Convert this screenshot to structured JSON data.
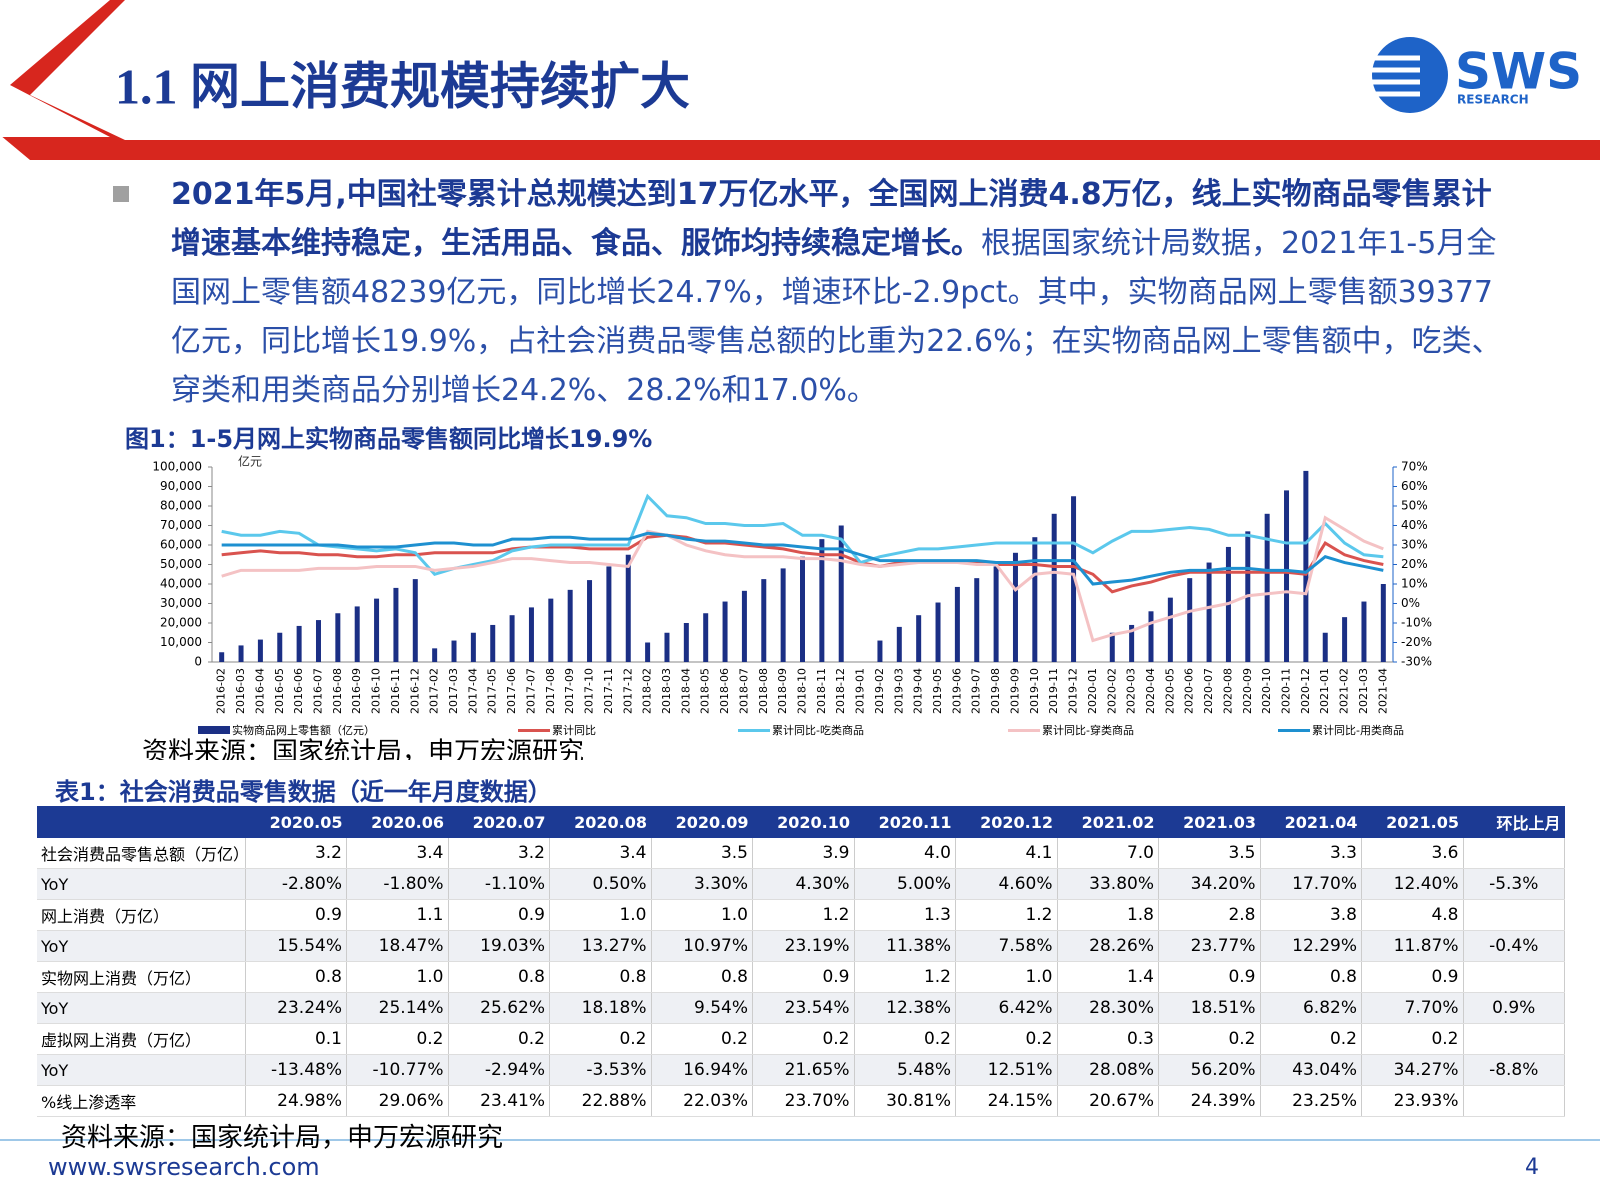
{
  "header": {
    "title": "1.1 网上消费规模持续扩大",
    "logo": "SWS",
    "logo_sub": "RESEARCH"
  },
  "bullet": {
    "bold": "2021年5月,中国社零累计总规模达到17万亿水平，全国网上消费4.8万亿，线上实物商品零售累计增速基本维持稳定，生活用品、食品、服饰均持续稳定增长。",
    "text": "根据国家统计局数据，2021年1-5月全国网上零售额48239亿元，同比增长24.7%，增速环比-2.9pct。其中，实物商品网上零售额39377亿元，同比增长19.9%，占社会消费品零售总额的比重为22.6%；在实物商品网上零售额中，吃类、穿类和用类商品分别增长24.2%、28.2%和17.0%。"
  },
  "chart_data": {
    "type": "combo",
    "title": "图1：1-5月网上实物商品零售额同比增长19.9%",
    "y_unit": "亿元",
    "categories": [
      "2016-02",
      "2016-03",
      "2016-04",
      "2016-05",
      "2016-06",
      "2016-07",
      "2016-08",
      "2016-09",
      "2016-10",
      "2016-11",
      "2016-12",
      "2017-02",
      "2017-03",
      "2017-04",
      "2017-05",
      "2017-06",
      "2017-07",
      "2017-08",
      "2017-09",
      "2017-10",
      "2017-11",
      "2017-12",
      "2018-02",
      "2018-03",
      "2018-04",
      "2018-05",
      "2018-06",
      "2018-07",
      "2018-08",
      "2018-09",
      "2018-10",
      "2018-11",
      "2018-12",
      "2019-01",
      "2019-02",
      "2019-03",
      "2019-04",
      "2019-05",
      "2019-06",
      "2019-07",
      "2019-08",
      "2019-09",
      "2019-10",
      "2019-11",
      "2019-12",
      "2020-01",
      "2020-02",
      "2020-03",
      "2020-04",
      "2020-05",
      "2020-06",
      "2020-07",
      "2020-08",
      "2020-09",
      "2020-10",
      "2020-11",
      "2020-12",
      "2021-01",
      "2021-02",
      "2021-03",
      "2021-04"
    ],
    "ylim": [
      0,
      100000
    ],
    "yticks": [
      0,
      {
        "value": 10000,
        "label": "10,000"
      },
      {
        "value": 20000,
        "label": "20,000"
      },
      {
        "value": 30000,
        "label": "30,000"
      },
      {
        "value": 40000,
        "label": "40,000"
      },
      {
        "value": 50000,
        "label": "50,000"
      },
      {
        "value": 60000,
        "label": "60,000"
      },
      {
        "value": 70000,
        "label": "70,000"
      },
      {
        "value": 80000,
        "label": "80,000"
      },
      {
        "value": 90000,
        "label": "90,000"
      },
      {
        "value": 100000,
        "label": "100,000"
      }
    ],
    "y2lim": [
      -30,
      70
    ],
    "y2ticks": [
      {
        "value": -30,
        "label": "-30%"
      },
      {
        "value": -20,
        "label": "-20%"
      },
      {
        "value": -10,
        "label": "-10%"
      },
      {
        "value": 0,
        "label": "0%"
      },
      {
        "value": 10,
        "label": "10%"
      },
      {
        "value": 20,
        "label": "20%"
      },
      {
        "value": 30,
        "label": "30%"
      },
      {
        "value": 40,
        "label": "40%"
      },
      {
        "value": 50,
        "label": "50%"
      },
      {
        "value": 60,
        "label": "60%"
      },
      {
        "value": 70,
        "label": "70%"
      }
    ],
    "series": [
      {
        "name": "实物商品网上零售额（亿元）",
        "type": "bar",
        "color": "#1b2f85",
        "values": [
          5000,
          8500,
          11500,
          15000,
          18500,
          21500,
          25000,
          28500,
          32500,
          38000,
          42500,
          7000,
          11000,
          15000,
          19000,
          24000,
          28000,
          32500,
          37000,
          42000,
          49000,
          55000,
          10000,
          15000,
          20000,
          25000,
          31000,
          36500,
          42500,
          48000,
          54000,
          63000,
          70000,
          null,
          11000,
          18000,
          24000,
          30500,
          38500,
          43000,
          49000,
          56000,
          64000,
          76000,
          85000,
          null,
          15000,
          19000,
          26000,
          33000,
          43000,
          51000,
          59000,
          67000,
          76000,
          88000,
          98000,
          15000,
          23000,
          31000,
          40000
        ]
      },
      {
        "name": "累计同比",
        "type": "line",
        "axis": "y2",
        "color": "#d9534f",
        "values": [
          25,
          26,
          27,
          26,
          26,
          25,
          25,
          24,
          24,
          25,
          25,
          26,
          26,
          26,
          26,
          28,
          29,
          29,
          29,
          28,
          28,
          28,
          34,
          35,
          34,
          31,
          31,
          30,
          29,
          28,
          26,
          25,
          25,
          21,
          19,
          21,
          21,
          21,
          21,
          21,
          20,
          20,
          20,
          19,
          19,
          15,
          6,
          9,
          11,
          14,
          16,
          16,
          16,
          16,
          16,
          16,
          15,
          31,
          25,
          22,
          20
        ]
      },
      {
        "name": "累计同比-吃类商品",
        "type": "line",
        "axis": "y2",
        "color": "#5bc8ec",
        "values": [
          37,
          35,
          35,
          37,
          36,
          30,
          29,
          28,
          27,
          28,
          26,
          15,
          18,
          20,
          22,
          27,
          29,
          30,
          30,
          30,
          30,
          30,
          55,
          45,
          44,
          41,
          41,
          40,
          40,
          41,
          35,
          35,
          33,
          21,
          24,
          26,
          28,
          28,
          29,
          30,
          31,
          31,
          31,
          31,
          31,
          26,
          32,
          37,
          37,
          38,
          39,
          38,
          35,
          35,
          33,
          31,
          31,
          41,
          31,
          25,
          24
        ]
      },
      {
        "name": "累计同比-穿类商品",
        "type": "line",
        "axis": "y2",
        "color": "#f4c2c4",
        "values": [
          14,
          17,
          17,
          17,
          17,
          18,
          18,
          18,
          19,
          19,
          19,
          17,
          18,
          19,
          21,
          23,
          23,
          22,
          21,
          21,
          20,
          19,
          37,
          35,
          30,
          27,
          25,
          24,
          24,
          24,
          23,
          23,
          22,
          20,
          19,
          20,
          21,
          21,
          21,
          20,
          20,
          7,
          15,
          16,
          15,
          -19,
          -16,
          -14,
          -10,
          -7,
          -4,
          -2,
          0,
          4,
          5,
          6,
          5,
          44,
          38,
          32,
          28
        ]
      },
      {
        "name": "累计同比-用类商品",
        "type": "line",
        "axis": "y2",
        "color": "#1e90d0",
        "values": [
          30,
          30,
          30,
          30,
          30,
          30,
          30,
          29,
          29,
          29,
          30,
          31,
          31,
          30,
          30,
          33,
          33,
          34,
          34,
          33,
          33,
          33,
          36,
          35,
          33,
          32,
          32,
          31,
          30,
          30,
          29,
          28,
          28,
          25,
          22,
          22,
          22,
          22,
          22,
          22,
          21,
          21,
          22,
          22,
          22,
          10,
          11,
          12,
          14,
          16,
          17,
          17,
          18,
          18,
          17,
          17,
          16,
          24,
          21,
          19,
          17
        ]
      }
    ],
    "source": "资料来源：国家统计局，申万宏源研究"
  },
  "table": {
    "title": "表1：社会消费品零售数据（近一年月度数据）",
    "columns": [
      "2020.05",
      "2020.06",
      "2020.07",
      "2020.08",
      "2020.09",
      "2020.10",
      "2020.11",
      "2020.12",
      "2021.02",
      "2021.03",
      "2021.04",
      "2021.05",
      "环比上月"
    ],
    "rows": [
      {
        "label": "社会消费品零售总额（万亿）",
        "values": [
          "3.2",
          "3.4",
          "3.2",
          "3.4",
          "3.5",
          "3.9",
          "4.0",
          "4.1",
          "7.0",
          "3.5",
          "3.3",
          "3.6"
        ]
      },
      {
        "label": "YoY",
        "values": [
          "-2.80%",
          "-1.80%",
          "-1.10%",
          "0.50%",
          "3.30%",
          "4.30%",
          "5.00%",
          "4.60%",
          "33.80%",
          "34.20%",
          "17.70%",
          "12.40%"
        ],
        "change": "-5.3%"
      },
      {
        "label": "网上消费（万亿）",
        "values": [
          "0.9",
          "1.1",
          "0.9",
          "1.0",
          "1.0",
          "1.2",
          "1.3",
          "1.2",
          "1.8",
          "2.8",
          "3.8",
          "4.8"
        ]
      },
      {
        "label": "YoY",
        "values": [
          "15.54%",
          "18.47%",
          "19.03%",
          "13.27%",
          "10.97%",
          "23.19%",
          "11.38%",
          "7.58%",
          "28.26%",
          "23.77%",
          "12.29%",
          "11.87%"
        ],
        "change": "-0.4%"
      },
      {
        "label": "实物网上消费（万亿）",
        "values": [
          "0.8",
          "1.0",
          "0.8",
          "0.8",
          "0.8",
          "0.9",
          "1.2",
          "1.0",
          "1.4",
          "0.9",
          "0.8",
          "0.9"
        ]
      },
      {
        "label": "YoY",
        "values": [
          "23.24%",
          "25.14%",
          "25.62%",
          "18.18%",
          "9.54%",
          "23.54%",
          "12.38%",
          "6.42%",
          "28.30%",
          "18.51%",
          "6.82%",
          "7.70%"
        ],
        "change": "0.9%"
      },
      {
        "label": "虚拟网上消费（万亿）",
        "values": [
          "0.1",
          "0.2",
          "0.2",
          "0.2",
          "0.2",
          "0.2",
          "0.2",
          "0.2",
          "0.3",
          "0.2",
          "0.2",
          "0.2"
        ]
      },
      {
        "label": "YoY",
        "values": [
          "-13.48%",
          "-10.77%",
          "-2.94%",
          "-3.53%",
          "16.94%",
          "21.65%",
          "5.48%",
          "12.51%",
          "28.08%",
          "56.20%",
          "43.04%",
          "34.27%"
        ],
        "change": "-8.8%"
      },
      {
        "label": "%线上渗透率",
        "values": [
          "24.98%",
          "29.06%",
          "23.41%",
          "22.88%",
          "22.03%",
          "23.70%",
          "30.81%",
          "24.15%",
          "20.67%",
          "24.39%",
          "23.25%",
          "23.93%"
        ]
      }
    ],
    "source": "资料来源：国家统计局，申万宏源研究"
  },
  "footer": {
    "url": "www.swsresearch.com",
    "page": "4"
  }
}
